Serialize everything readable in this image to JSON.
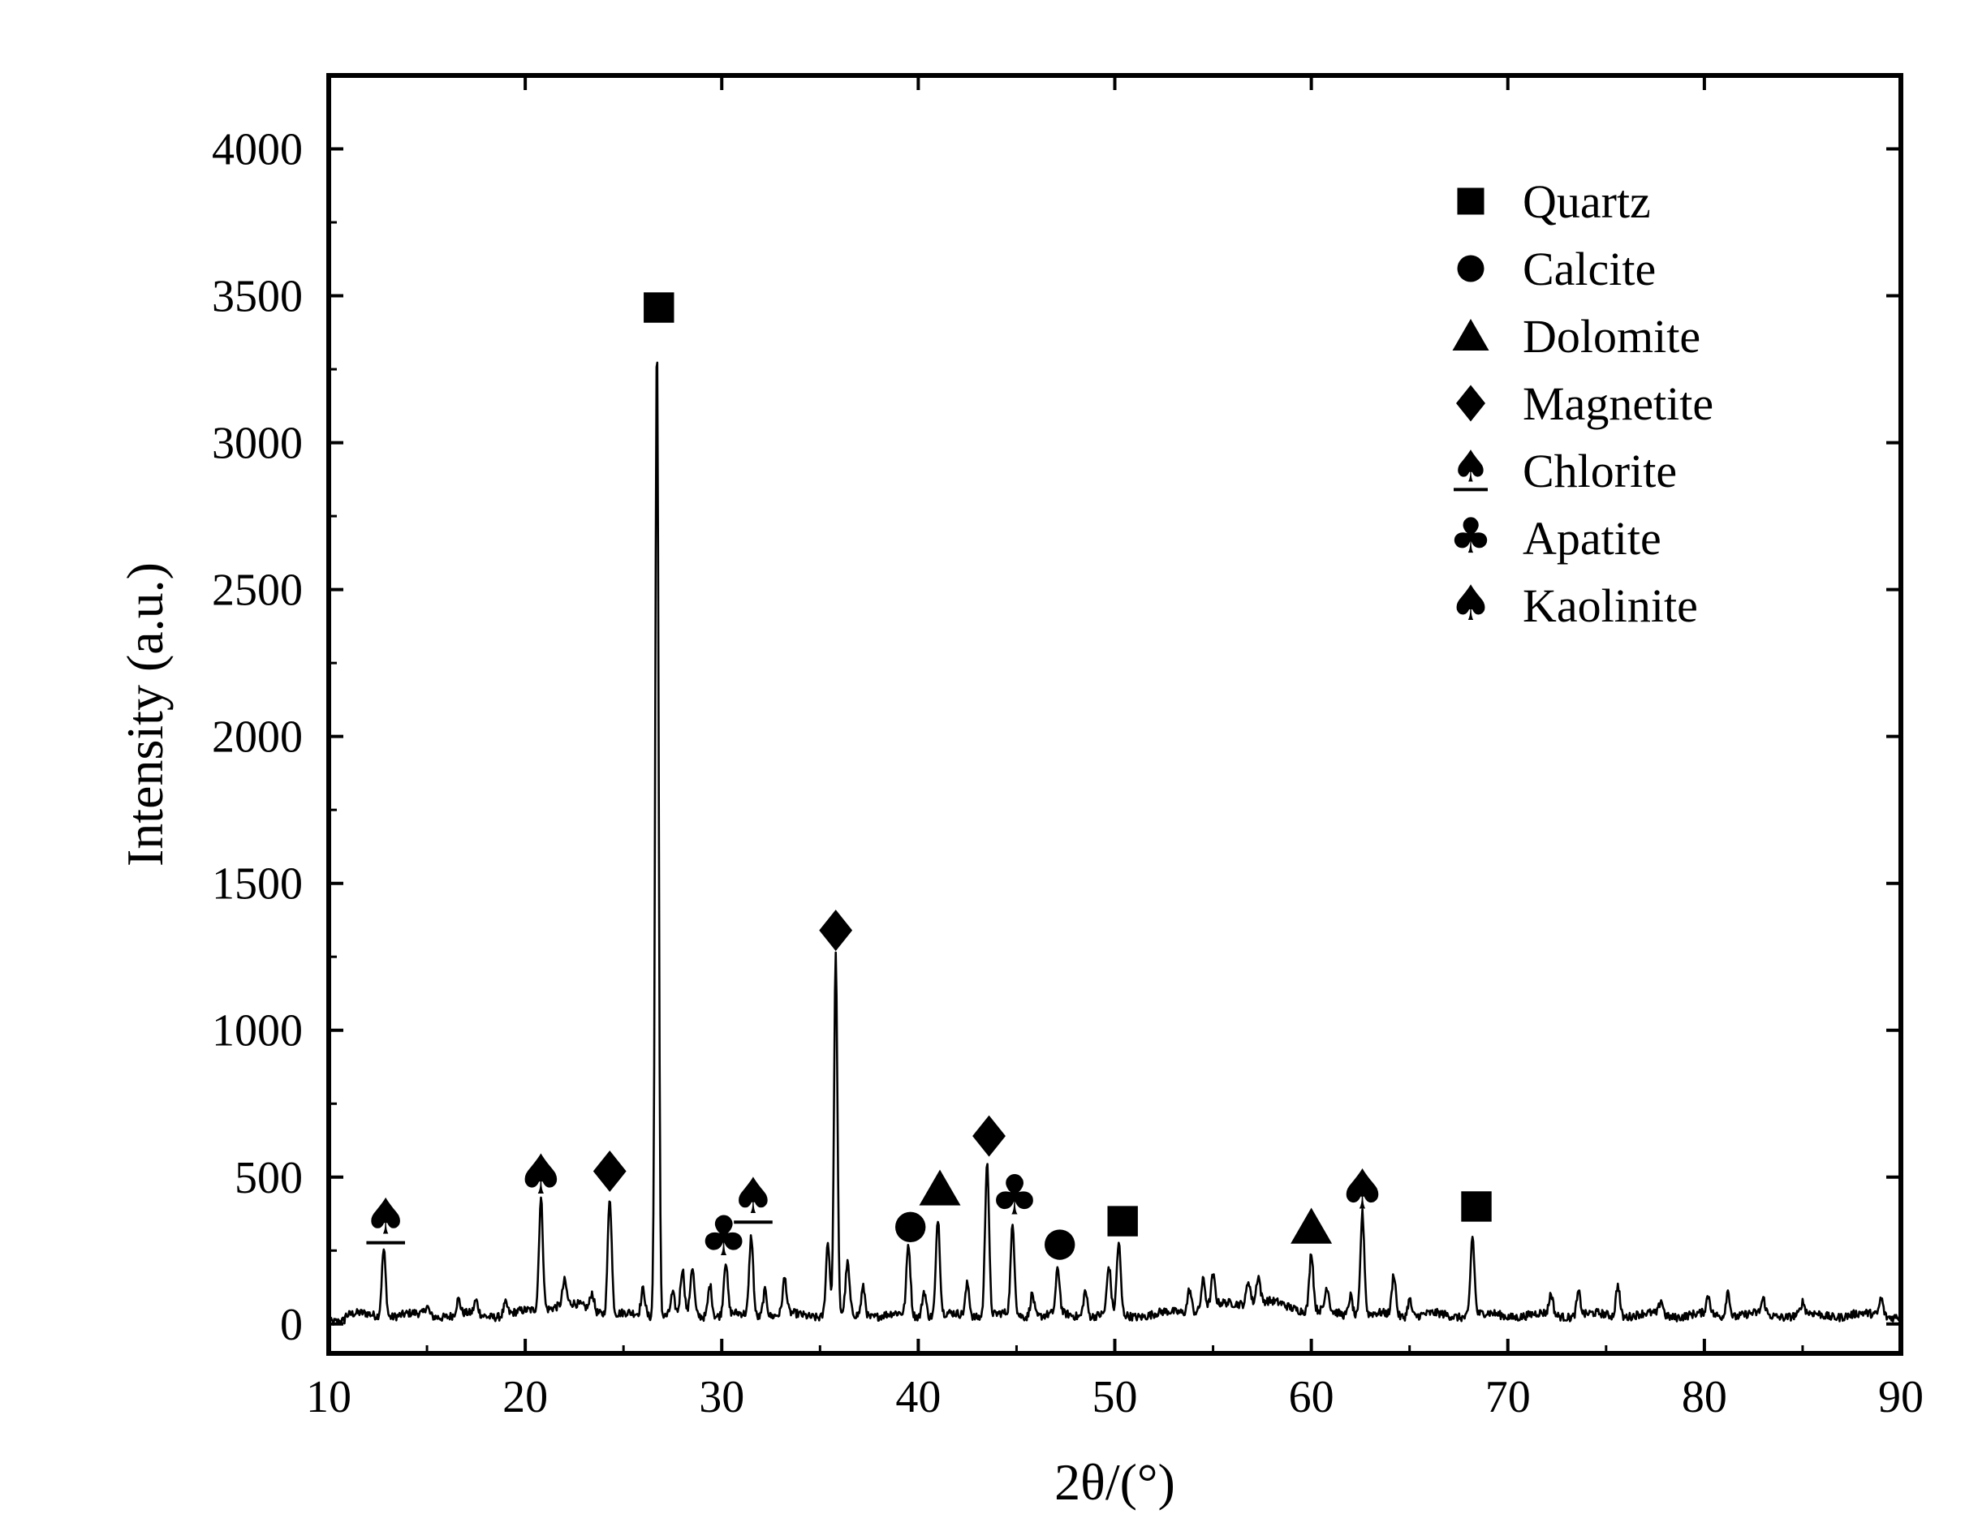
{
  "chart_data": {
    "type": "line",
    "title": "",
    "xlabel": "2θ/(°)",
    "ylabel": "Intensity (a.u.)",
    "xlim": [
      10,
      90
    ],
    "ylim": [
      -100,
      4250
    ],
    "x_ticks": [
      10,
      20,
      30,
      40,
      50,
      60,
      70,
      80,
      90
    ],
    "y_ticks": [
      0,
      500,
      1000,
      1500,
      2000,
      2500,
      3000,
      3500,
      4000
    ],
    "x_tick_labels": [
      "10",
      "20",
      "30",
      "40",
      "50",
      "60",
      "70",
      "80",
      "90"
    ],
    "y_tick_labels": [
      "0",
      "500",
      "1000",
      "1500",
      "2000",
      "2500",
      "3000",
      "3500",
      "4000"
    ],
    "grid": false,
    "legend_position": "top-right",
    "baseline": 30,
    "peaks": [
      {
        "x": 12.8,
        "y": 260
      },
      {
        "x": 15.0,
        "y": 60
      },
      {
        "x": 16.6,
        "y": 80
      },
      {
        "x": 17.5,
        "y": 75
      },
      {
        "x": 19.0,
        "y": 70
      },
      {
        "x": 20.8,
        "y": 410
      },
      {
        "x": 22.0,
        "y": 110
      },
      {
        "x": 23.4,
        "y": 90
      },
      {
        "x": 24.3,
        "y": 430
      },
      {
        "x": 26.0,
        "y": 120
      },
      {
        "x": 26.7,
        "y": 3370
      },
      {
        "x": 27.5,
        "y": 100
      },
      {
        "x": 28.0,
        "y": 180
      },
      {
        "x": 28.5,
        "y": 190
      },
      {
        "x": 29.4,
        "y": 140
      },
      {
        "x": 30.2,
        "y": 210
      },
      {
        "x": 31.5,
        "y": 300
      },
      {
        "x": 32.2,
        "y": 120
      },
      {
        "x": 33.2,
        "y": 150
      },
      {
        "x": 35.4,
        "y": 280
      },
      {
        "x": 35.8,
        "y": 1250
      },
      {
        "x": 36.4,
        "y": 200
      },
      {
        "x": 37.2,
        "y": 130
      },
      {
        "x": 39.5,
        "y": 270
      },
      {
        "x": 40.3,
        "y": 120
      },
      {
        "x": 41.0,
        "y": 360
      },
      {
        "x": 42.5,
        "y": 140
      },
      {
        "x": 43.5,
        "y": 560
      },
      {
        "x": 44.8,
        "y": 330
      },
      {
        "x": 45.8,
        "y": 110
      },
      {
        "x": 47.1,
        "y": 180
      },
      {
        "x": 48.5,
        "y": 120
      },
      {
        "x": 49.7,
        "y": 190
      },
      {
        "x": 50.2,
        "y": 270
      },
      {
        "x": 53.8,
        "y": 110
      },
      {
        "x": 54.5,
        "y": 130
      },
      {
        "x": 55.0,
        "y": 130
      },
      {
        "x": 56.8,
        "y": 110
      },
      {
        "x": 57.3,
        "y": 120
      },
      {
        "x": 60.0,
        "y": 230
      },
      {
        "x": 60.8,
        "y": 110
      },
      {
        "x": 62.0,
        "y": 100
      },
      {
        "x": 62.6,
        "y": 380
      },
      {
        "x": 64.2,
        "y": 170
      },
      {
        "x": 65.0,
        "y": 90
      },
      {
        "x": 68.2,
        "y": 300
      },
      {
        "x": 72.2,
        "y": 100
      },
      {
        "x": 73.6,
        "y": 110
      },
      {
        "x": 75.6,
        "y": 140
      },
      {
        "x": 77.8,
        "y": 80
      },
      {
        "x": 80.2,
        "y": 90
      },
      {
        "x": 81.2,
        "y": 120
      },
      {
        "x": 83.0,
        "y": 80
      },
      {
        "x": 85.0,
        "y": 70
      },
      {
        "x": 89.0,
        "y": 90
      }
    ],
    "series": [
      {
        "type": "line",
        "color": "#000000"
      }
    ],
    "phase_markers": [
      {
        "phase": "quartz",
        "x": 26.8,
        "y": 3460
      },
      {
        "phase": "quartz",
        "x": 50.4,
        "y": 350
      },
      {
        "phase": "quartz",
        "x": 68.4,
        "y": 400
      },
      {
        "phase": "calcite",
        "x": 39.6,
        "y": 330
      },
      {
        "phase": "calcite",
        "x": 47.2,
        "y": 270
      },
      {
        "phase": "dolomite",
        "x": 41.1,
        "y": 460
      },
      {
        "phase": "dolomite",
        "x": 60.0,
        "y": 330
      },
      {
        "phase": "magnetite",
        "x": 24.3,
        "y": 520
      },
      {
        "phase": "magnetite",
        "x": 35.8,
        "y": 1340
      },
      {
        "phase": "magnetite",
        "x": 43.6,
        "y": 640
      },
      {
        "phase": "chlorite",
        "x": 12.9,
        "y": 350
      },
      {
        "phase": "chlorite",
        "x": 31.6,
        "y": 420
      },
      {
        "phase": "apatite",
        "x": 30.1,
        "y": 290
      },
      {
        "phase": "apatite",
        "x": 44.9,
        "y": 430
      },
      {
        "phase": "kaolinite",
        "x": 20.8,
        "y": 500
      },
      {
        "phase": "kaolinite",
        "x": 62.6,
        "y": 450
      }
    ],
    "legend": [
      {
        "phase": "quartz",
        "label": "Quartz",
        "icon": "square-icon"
      },
      {
        "phase": "calcite",
        "label": "Calcite",
        "icon": "circle-icon"
      },
      {
        "phase": "dolomite",
        "label": "Dolomite",
        "icon": "triangle-icon"
      },
      {
        "phase": "magnetite",
        "label": "Magnetite",
        "icon": "diamond-icon"
      },
      {
        "phase": "chlorite",
        "label": "Chlorite",
        "icon": "spade-underline-icon"
      },
      {
        "phase": "apatite",
        "label": "Apatite",
        "icon": "club-icon"
      },
      {
        "phase": "kaolinite",
        "label": "Kaolinite",
        "icon": "spade-icon"
      }
    ]
  }
}
